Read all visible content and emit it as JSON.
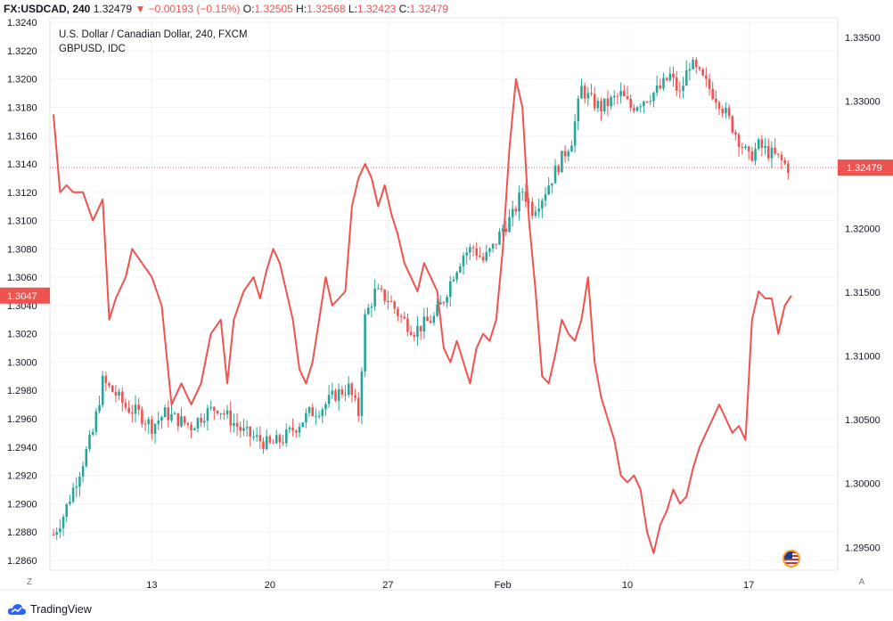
{
  "header": {
    "symbol": "FX:USDCAD, 240",
    "last": "1.32479",
    "change_arrow": "▼",
    "change": "−0.00193 (−0.15%)",
    "o_label": "O:",
    "o_value": "1.32505",
    "h_label": "H:",
    "h_value": "1.32568",
    "l_label": "L:",
    "l_value": "1.32423",
    "c_label": "C:",
    "c_value": "1.32479"
  },
  "legend": {
    "series1": "U.S. Dollar / Canadian Dollar, 240, FXCM",
    "series2": "GBPUSD, IDC"
  },
  "footer": {
    "brand": "TradingView",
    "zoom_button": "Z",
    "auto_button": "A"
  },
  "colors": {
    "up": "#26a69a",
    "down": "#ef5350",
    "line": "#ef5350",
    "grid": "#f0f3fa",
    "axis_text": "#131722"
  },
  "chart_data": {
    "type": "candlestick+line",
    "x_labels": [
      "13",
      "20",
      "27",
      "Feb",
      "10",
      "17"
    ],
    "left_axis": {
      "series": "GBPUSD",
      "ticks": [
        "1.3240",
        "1.3220",
        "1.3200",
        "1.3180",
        "1.3160",
        "1.3140",
        "1.3120",
        "1.3100",
        "1.3080",
        "1.3060",
        "1.3040",
        "1.3020",
        "1.3000",
        "1.2980",
        "1.2960",
        "1.2940",
        "1.2920",
        "1.2900",
        "1.2880",
        "1.2860"
      ],
      "last_value_label": "1.3047",
      "range": [
        1.2853,
        1.3242
      ]
    },
    "right_axis": {
      "series": "USDCAD",
      "ticks": [
        "1.33500",
        "1.33000",
        "1.32500",
        "1.32000",
        "1.31500",
        "1.31000",
        "1.30500",
        "1.30000",
        "1.29500"
      ],
      "last_value_label": "1.32479",
      "range": [
        1.2932,
        1.3364
      ]
    },
    "usdcad_close_path": [
      [
        0,
        1.296
      ],
      [
        3,
        1.2975
      ],
      [
        8,
        1.301
      ],
      [
        12,
        1.304
      ],
      [
        15,
        1.308
      ],
      [
        19,
        1.307
      ],
      [
        22,
        1.306
      ],
      [
        26,
        1.3055
      ],
      [
        30,
        1.3045
      ],
      [
        34,
        1.3055
      ],
      [
        38,
        1.305
      ],
      [
        42,
        1.3045
      ],
      [
        46,
        1.3055
      ],
      [
        50,
        1.306
      ],
      [
        54,
        1.305
      ],
      [
        58,
        1.304
      ],
      [
        62,
        1.3035
      ],
      [
        66,
        1.303
      ],
      [
        70,
        1.3035
      ],
      [
        74,
        1.3045
      ],
      [
        78,
        1.3055
      ],
      [
        82,
        1.306
      ],
      [
        86,
        1.307
      ],
      [
        90,
        1.3075
      ],
      [
        93,
        1.3055
      ],
      [
        95,
        1.313
      ],
      [
        98,
        1.315
      ],
      [
        102,
        1.3145
      ],
      [
        106,
        1.313
      ],
      [
        110,
        1.312
      ],
      [
        113,
        1.3125
      ],
      [
        116,
        1.313
      ],
      [
        119,
        1.3145
      ],
      [
        122,
        1.3165
      ],
      [
        125,
        1.318
      ],
      [
        128,
        1.3185
      ],
      [
        131,
        1.3175
      ],
      [
        134,
        1.3185
      ],
      [
        137,
        1.32
      ],
      [
        140,
        1.321
      ],
      [
        143,
        1.323
      ],
      [
        146,
        1.3215
      ],
      [
        149,
        1.3225
      ],
      [
        152,
        1.324
      ],
      [
        155,
        1.3255
      ],
      [
        158,
        1.327
      ],
      [
        161,
        1.331
      ],
      [
        164,
        1.33
      ],
      [
        167,
        1.3295
      ],
      [
        170,
        1.33
      ],
      [
        173,
        1.3305
      ],
      [
        176,
        1.3295
      ],
      [
        179,
        1.33
      ],
      [
        182,
        1.3305
      ],
      [
        185,
        1.331
      ],
      [
        188,
        1.332
      ],
      [
        191,
        1.3305
      ],
      [
        194,
        1.333
      ],
      [
        197,
        1.332
      ],
      [
        200,
        1.331
      ],
      [
        203,
        1.33
      ],
      [
        206,
        1.3285
      ],
      [
        209,
        1.327
      ],
      [
        212,
        1.3255
      ],
      [
        215,
        1.3265
      ],
      [
        218,
        1.326
      ],
      [
        221,
        1.3255
      ],
      [
        224,
        1.3248
      ]
    ],
    "gbpusd_line": [
      [
        0,
        1.3175
      ],
      [
        2,
        1.312
      ],
      [
        4,
        1.3125
      ],
      [
        6,
        1.312
      ],
      [
        9,
        1.312
      ],
      [
        12,
        1.31
      ],
      [
        15,
        1.3115
      ],
      [
        17,
        1.303
      ],
      [
        19,
        1.3045
      ],
      [
        22,
        1.306
      ],
      [
        24,
        1.308
      ],
      [
        27,
        1.307
      ],
      [
        30,
        1.306
      ],
      [
        33,
        1.304
      ],
      [
        36,
        1.297
      ],
      [
        39,
        1.2985
      ],
      [
        42,
        1.297
      ],
      [
        45,
        1.2985
      ],
      [
        48,
        1.302
      ],
      [
        51,
        1.303
      ],
      [
        53,
        1.2985
      ],
      [
        55,
        1.303
      ],
      [
        58,
        1.305
      ],
      [
        61,
        1.306
      ],
      [
        63,
        1.3045
      ],
      [
        65,
        1.3065
      ],
      [
        67,
        1.308
      ],
      [
        69,
        1.307
      ],
      [
        71,
        1.305
      ],
      [
        73,
        1.303
      ],
      [
        75,
        1.2995
      ],
      [
        77,
        1.2985
      ],
      [
        79,
        1.3
      ],
      [
        81,
        1.303
      ],
      [
        83,
        1.306
      ],
      [
        85,
        1.304
      ],
      [
        87,
        1.3045
      ],
      [
        89,
        1.305
      ],
      [
        91,
        1.311
      ],
      [
        93,
        1.313
      ],
      [
        95,
        1.314
      ],
      [
        97,
        1.313
      ],
      [
        99,
        1.311
      ],
      [
        101,
        1.3125
      ],
      [
        103,
        1.3105
      ],
      [
        105,
        1.309
      ],
      [
        107,
        1.307
      ],
      [
        109,
        1.306
      ],
      [
        111,
        1.305
      ],
      [
        113,
        1.307
      ],
      [
        115,
        1.306
      ],
      [
        117,
        1.305
      ],
      [
        119,
        1.301
      ],
      [
        121,
        1.3
      ],
      [
        123,
        1.3015
      ],
      [
        125,
        1.3
      ],
      [
        127,
        1.2985
      ],
      [
        129,
        1.301
      ],
      [
        131,
        1.302
      ],
      [
        133,
        1.3015
      ],
      [
        135,
        1.303
      ],
      [
        137,
        1.308
      ],
      [
        139,
        1.315
      ],
      [
        141,
        1.32
      ],
      [
        143,
        1.318
      ],
      [
        145,
        1.31
      ],
      [
        147,
        1.305
      ],
      [
        149,
        1.299
      ],
      [
        151,
        1.2985
      ],
      [
        153,
        1.3005
      ],
      [
        155,
        1.303
      ],
      [
        157,
        1.302
      ],
      [
        159,
        1.3015
      ],
      [
        161,
        1.303
      ],
      [
        163,
        1.306
      ],
      [
        165,
        1.3
      ],
      [
        167,
        1.2975
      ],
      [
        169,
        1.296
      ],
      [
        171,
        1.2945
      ],
      [
        173,
        1.292
      ],
      [
        175,
        1.2915
      ],
      [
        177,
        1.292
      ],
      [
        179,
        1.291
      ],
      [
        181,
        1.288
      ],
      [
        183,
        1.2865
      ],
      [
        185,
        1.2885
      ],
      [
        187,
        1.2895
      ],
      [
        189,
        1.291
      ],
      [
        191,
        1.29
      ],
      [
        193,
        1.2905
      ],
      [
        195,
        1.2925
      ],
      [
        197,
        1.294
      ],
      [
        199,
        1.295
      ],
      [
        201,
        1.296
      ],
      [
        203,
        1.297
      ],
      [
        205,
        1.296
      ],
      [
        207,
        1.295
      ],
      [
        209,
        1.2955
      ],
      [
        211,
        1.2945
      ],
      [
        213,
        1.303
      ],
      [
        215,
        1.305
      ],
      [
        217,
        1.3045
      ],
      [
        219,
        1.3045
      ],
      [
        221,
        1.302
      ],
      [
        223,
        1.304
      ],
      [
        225,
        1.3047
      ]
    ]
  }
}
